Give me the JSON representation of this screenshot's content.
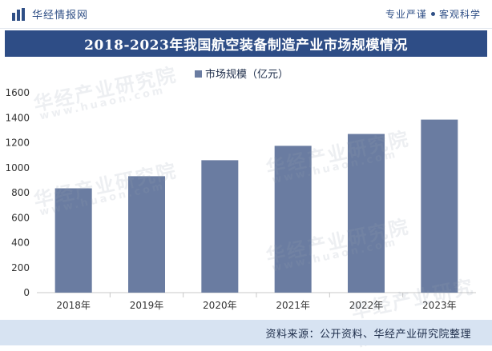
{
  "header": {
    "brand": "华经情报网",
    "slogan_left": "专业严谨",
    "slogan_right": "客观科学"
  },
  "title": "2018-2023年我国航空装备制造产业市场规模情况",
  "watermark": {
    "text": "华经产业研究院",
    "url": "www.huaon.com"
  },
  "source": "资料来源：公开资料、华经产业研究院整理",
  "colors": {
    "bar": "#6a7ca1",
    "title_bg": "#2e4d86",
    "footer_bg": "#d7e3f2",
    "grid": "#d9d9d9"
  },
  "chart_data": {
    "type": "bar",
    "categories": [
      "2018年",
      "2019年",
      "2020年",
      "2021年",
      "2022年",
      "2023年"
    ],
    "series": [
      {
        "name": "市场规模（亿元）",
        "values": [
          835,
          932,
          1060,
          1175,
          1270,
          1385
        ]
      }
    ],
    "ylim": [
      0,
      1600
    ],
    "yticks": [
      0,
      200,
      400,
      600,
      800,
      1000,
      1200,
      1400,
      1600
    ],
    "legend_position": "top-center",
    "grid": false
  }
}
